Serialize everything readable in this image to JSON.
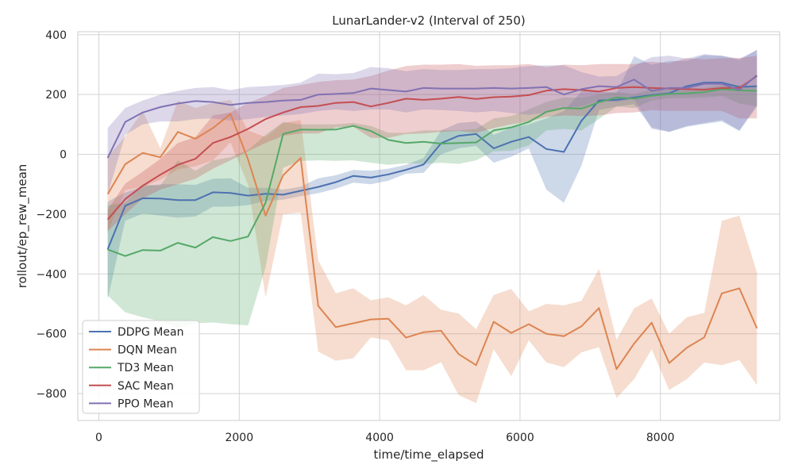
{
  "chart_data": {
    "type": "line",
    "title": "LunarLander-v2 (Interval of 250)",
    "xlabel": "time/time_elapsed",
    "ylabel": "rollout/ep_rew_mean",
    "xlim": [
      -300,
      9700
    ],
    "ylim": [
      -890,
      410
    ],
    "xticks": [
      0,
      2000,
      4000,
      6000,
      8000
    ],
    "yticks": [
      -800,
      -600,
      -400,
      -200,
      0,
      200,
      400
    ],
    "xtick_labels": [
      "0",
      "2000",
      "4000",
      "6000",
      "8000"
    ],
    "ytick_labels": [
      "−800",
      "−600",
      "−400",
      "−200",
      "0",
      "200",
      "400"
    ],
    "grid": true,
    "legend_position": "lower-left",
    "x": [
      125,
      375,
      625,
      875,
      1125,
      1375,
      1625,
      1875,
      2125,
      2375,
      2625,
      2875,
      3125,
      3375,
      3625,
      3875,
      4125,
      4375,
      4625,
      4875,
      5125,
      5375,
      5625,
      5875,
      6125,
      6375,
      6625,
      6875,
      7125,
      7375,
      7625,
      7875,
      8125,
      8375,
      8625,
      8875,
      9125,
      9375
    ],
    "series": [
      {
        "name": "DDPG Mean",
        "color": "#4c72b0",
        "values": [
          -318,
          -172,
          -147,
          -148,
          -153,
          -153,
          -127,
          -129,
          -138,
          -132,
          -135,
          -122,
          -109,
          -93,
          -72,
          -78,
          -67,
          -52,
          -34,
          37,
          62,
          68,
          20,
          42,
          58,
          18,
          8,
          112,
          180,
          182,
          190,
          198,
          204,
          228,
          240,
          240,
          225,
          228
        ],
        "lower": [
          -485,
          -222,
          -198,
          -205,
          -212,
          -208,
          -175,
          -175,
          -170,
          -155,
          -152,
          -140,
          -130,
          -115,
          -95,
          -100,
          -88,
          -65,
          -62,
          0,
          20,
          28,
          -28,
          -8,
          20,
          -118,
          -162,
          -38,
          148,
          160,
          168,
          90,
          75,
          92,
          102,
          110,
          78,
          160
        ],
        "upper": [
          -158,
          -128,
          -108,
          -100,
          -100,
          -102,
          -82,
          -80,
          -112,
          -112,
          -118,
          -108,
          -80,
          -70,
          -52,
          -55,
          -48,
          -35,
          -12,
          80,
          105,
          110,
          65,
          90,
          100,
          120,
          145,
          210,
          210,
          205,
          328,
          300,
          312,
          312,
          332,
          330,
          315,
          350
        ]
      },
      {
        "name": "DQN Mean",
        "color": "#dd8452",
        "values": [
          -133,
          -33,
          5,
          -10,
          75,
          52,
          88,
          135,
          -17,
          -205,
          -70,
          -12,
          -507,
          -578,
          -565,
          -552,
          -550,
          -613,
          -595,
          -590,
          -668,
          -705,
          -560,
          -597,
          -568,
          -600,
          -608,
          -575,
          -514,
          -718,
          -633,
          -563,
          -698,
          -647,
          -612,
          -465,
          -448,
          -582
        ],
        "lower": [
          -258,
          -120,
          -108,
          -85,
          -50,
          -40,
          -20,
          40,
          -102,
          -478,
          -200,
          -195,
          -660,
          -690,
          -682,
          -612,
          -622,
          -722,
          -722,
          -695,
          -805,
          -832,
          -652,
          -742,
          -622,
          -696,
          -712,
          -662,
          -645,
          -815,
          -752,
          -652,
          -788,
          -752,
          -696,
          -705,
          -688,
          -772
        ],
        "upper": [
          -8,
          60,
          145,
          20,
          180,
          155,
          172,
          182,
          80,
          58,
          105,
          115,
          -355,
          -465,
          -448,
          -488,
          -478,
          -505,
          -470,
          -520,
          -532,
          -585,
          -470,
          -450,
          -525,
          -500,
          -505,
          -490,
          -383,
          -620,
          -515,
          -482,
          -600,
          -545,
          -530,
          -222,
          -205,
          -395
        ]
      },
      {
        "name": "TD3 Mean",
        "color": "#55a868",
        "values": [
          -318,
          -340,
          -320,
          -322,
          -296,
          -312,
          -277,
          -290,
          -275,
          -162,
          68,
          83,
          82,
          83,
          95,
          78,
          48,
          38,
          42,
          36,
          38,
          40,
          80,
          90,
          108,
          142,
          155,
          153,
          174,
          190,
          186,
          196,
          202,
          204,
          208,
          218,
          214,
          212
        ],
        "lower": [
          -472,
          -528,
          -545,
          -558,
          -580,
          -565,
          -562,
          -568,
          -572,
          -378,
          -45,
          -22,
          -20,
          -22,
          -20,
          -28,
          -35,
          -30,
          -32,
          -28,
          -32,
          -20,
          10,
          12,
          30,
          80,
          85,
          80,
          118,
          160,
          155,
          180,
          188,
          188,
          190,
          195,
          170,
          160
        ],
        "upper": [
          -170,
          -162,
          -100,
          -105,
          -20,
          -55,
          -20,
          -10,
          15,
          65,
          108,
          100,
          100,
          100,
          105,
          95,
          72,
          72,
          80,
          80,
          80,
          85,
          120,
          128,
          150,
          175,
          190,
          190,
          200,
          210,
          200,
          220,
          215,
          220,
          222,
          232,
          232,
          228
        ]
      },
      {
        "name": "SAC Mean",
        "color": "#c44e52",
        "values": [
          -218,
          -150,
          -105,
          -68,
          -35,
          -15,
          38,
          58,
          85,
          118,
          140,
          158,
          162,
          172,
          175,
          160,
          172,
          186,
          182,
          186,
          192,
          185,
          191,
          193,
          198,
          213,
          218,
          215,
          210,
          222,
          225,
          222,
          220,
          218,
          216,
          222,
          222,
          262
        ],
        "lower": [
          -258,
          -200,
          -148,
          -118,
          -100,
          -82,
          -48,
          -20,
          10,
          38,
          62,
          70,
          70,
          90,
          92,
          55,
          55,
          68,
          70,
          75,
          78,
          72,
          88,
          100,
          110,
          125,
          130,
          128,
          130,
          138,
          140,
          148,
          145,
          145,
          145,
          145,
          120,
          120
        ],
        "upper": [
          -185,
          -98,
          -58,
          -15,
          38,
          58,
          130,
          140,
          172,
          195,
          222,
          232,
          242,
          248,
          250,
          262,
          280,
          295,
          300,
          300,
          302,
          296,
          298,
          298,
          302,
          292,
          300,
          298,
          302,
          302,
          302,
          310,
          305,
          322,
          318,
          322,
          322,
          330
        ]
      },
      {
        "name": "PPO Mean",
        "color": "#8172b3",
        "values": [
          -12,
          108,
          140,
          158,
          170,
          178,
          175,
          165,
          172,
          175,
          180,
          182,
          200,
          202,
          205,
          220,
          215,
          210,
          222,
          220,
          220,
          220,
          222,
          220,
          222,
          225,
          200,
          218,
          228,
          225,
          250,
          212,
          222,
          222,
          236,
          236,
          215,
          265
        ],
        "lower": [
          -135,
          65,
          100,
          110,
          110,
          118,
          120,
          112,
          118,
          125,
          130,
          135,
          145,
          150,
          145,
          150,
          150,
          140,
          150,
          148,
          145,
          140,
          145,
          138,
          132,
          140,
          155,
          160,
          178,
          175,
          185,
          85,
          75,
          95,
          105,
          115,
          80,
          165
        ],
        "upper": [
          88,
          155,
          180,
          200,
          212,
          222,
          225,
          215,
          225,
          228,
          232,
          240,
          270,
          268,
          272,
          292,
          288,
          278,
          285,
          282,
          282,
          285,
          285,
          288,
          295,
          298,
          298,
          275,
          260,
          262,
          295,
          325,
          330,
          320,
          335,
          330,
          320,
          348
        ]
      }
    ]
  }
}
